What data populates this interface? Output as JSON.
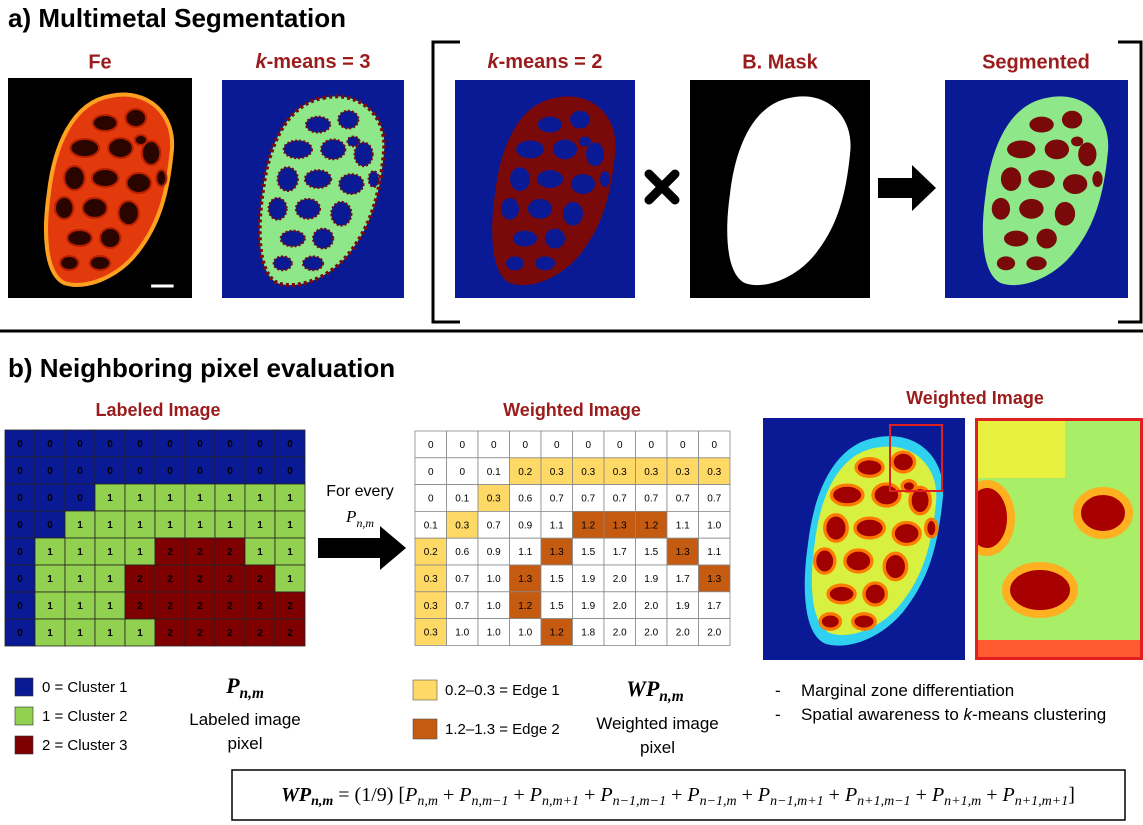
{
  "section_a": {
    "title": "a) Multimetal Segmentation",
    "panels": [
      "Fe",
      [
        {
          "text": "k",
          "italic": true
        },
        {
          "text": "-means = 3"
        }
      ],
      [
        {
          "text": "k",
          "italic": true
        },
        {
          "text": "-means = 2"
        }
      ],
      "B. Mask",
      "Segmented"
    ]
  },
  "section_b": {
    "title": "b) Neighboring pixel evaluation",
    "labeled": {
      "title": "Labeled Image",
      "rows": [
        [
          0,
          0,
          0,
          0,
          0,
          0,
          0,
          0,
          0,
          0
        ],
        [
          0,
          0,
          0,
          0,
          0,
          0,
          0,
          0,
          0,
          0
        ],
        [
          0,
          0,
          0,
          1,
          1,
          1,
          1,
          1,
          1,
          1
        ],
        [
          0,
          0,
          1,
          1,
          1,
          1,
          1,
          1,
          1,
          1
        ],
        [
          0,
          1,
          1,
          1,
          1,
          2,
          2,
          2,
          1,
          1
        ],
        [
          0,
          1,
          1,
          1,
          2,
          2,
          2,
          2,
          2,
          1
        ],
        [
          0,
          1,
          1,
          1,
          2,
          2,
          2,
          2,
          2,
          2
        ],
        [
          0,
          1,
          1,
          1,
          1,
          2,
          2,
          2,
          2,
          2
        ]
      ],
      "legend": [
        {
          "value": 0,
          "label": "0 = Cluster 1",
          "color": "#0a1a94"
        },
        {
          "value": 1,
          "label": "1 = Cluster 2",
          "color": "#92d050"
        },
        {
          "value": 2,
          "label": "2 = Cluster 3",
          "color": "#7f0000"
        }
      ],
      "symbol": [
        {
          "text": "P"
        },
        {
          "text": "n,m",
          "sub": true
        }
      ],
      "caption": "Labeled image pixel"
    },
    "transition": {
      "text": "For every",
      "symbol": [
        {
          "text": "P",
          "italic": true
        },
        {
          "text": "n,m",
          "sub": true,
          "italic": true
        }
      ]
    },
    "weighted": {
      "title": "Weighted Image",
      "rows": [
        [
          "0",
          "0",
          "0",
          "0",
          "0",
          "0",
          "0",
          "0",
          "0",
          "0"
        ],
        [
          "0",
          "0",
          "0.1",
          "0.2",
          "0.3",
          "0.3",
          "0.3",
          "0.3",
          "0.3",
          "0.3"
        ],
        [
          "0",
          "0.1",
          "0.3",
          "0.6",
          "0.7",
          "0.7",
          "0.7",
          "0.7",
          "0.7",
          "0.7"
        ],
        [
          "0.1",
          "0.3",
          "0.7",
          "0.9",
          "1.1",
          "1.2",
          "1.3",
          "1.2",
          "1.1",
          "1.0"
        ],
        [
          "0.2",
          "0.6",
          "0.9",
          "1.1",
          "1.3",
          "1.5",
          "1.7",
          "1.5",
          "1.3",
          "1.1"
        ],
        [
          "0.3",
          "0.7",
          "1.0",
          "1.3",
          "1.5",
          "1.9",
          "2.0",
          "1.9",
          "1.7",
          "1.3"
        ],
        [
          "0.3",
          "0.7",
          "1.0",
          "1.2",
          "1.5",
          "1.9",
          "2.0",
          "2.0",
          "1.9",
          "1.7"
        ],
        [
          "0.3",
          "1.0",
          "1.0",
          "1.0",
          "1.2",
          "1.8",
          "2.0",
          "2.0",
          "2.0",
          "2.0"
        ]
      ],
      "legend": [
        {
          "range": [
            0.2,
            0.3
          ],
          "label": "0.2–0.3 = Edge 1",
          "color": "#ffd966"
        },
        {
          "range": [
            1.2,
            1.3
          ],
          "label": "1.2–1.3 = Edge 2",
          "color": "#c55a11"
        }
      ],
      "symbol": [
        {
          "text": "WP"
        },
        {
          "text": "n,m",
          "sub": true
        }
      ],
      "caption": "Weighted image pixel"
    },
    "image": {
      "title": "Weighted Image"
    },
    "bullets": {
      "marker": "-",
      "items": [
        "Marginal zone differentiation",
        [
          {
            "text": "Spatial awareness to "
          },
          {
            "text": "k",
            "italic": true
          },
          {
            "text": "-means clustering"
          }
        ]
      ]
    },
    "formula": [
      {
        "text": "WP",
        "bold": true,
        "italic": true
      },
      {
        "text": "n,m",
        "sub": true,
        "bold": true,
        "italic": true
      },
      {
        "text": " = (1/9) ["
      },
      {
        "text": "P",
        "italic": true
      },
      {
        "text": "n,m",
        "sub": true,
        "italic": true
      },
      {
        "text": " + "
      },
      {
        "text": "P",
        "italic": true
      },
      {
        "text": "n,m−1",
        "sub": true,
        "italic": true
      },
      {
        "text": " + "
      },
      {
        "text": "P",
        "italic": true
      },
      {
        "text": "n,m+1",
        "sub": true,
        "italic": true
      },
      {
        "text": " + "
      },
      {
        "text": "P",
        "italic": true
      },
      {
        "text": "n−1,m−1",
        "sub": true,
        "italic": true
      },
      {
        "text": " + "
      },
      {
        "text": "P",
        "italic": true
      },
      {
        "text": "n−1,m",
        "sub": true,
        "italic": true
      },
      {
        "text": " + "
      },
      {
        "text": "P",
        "italic": true
      },
      {
        "text": "n−1,m+1",
        "sub": true,
        "italic": true
      },
      {
        "text": " + "
      },
      {
        "text": "P",
        "italic": true
      },
      {
        "text": "n+1,m−1",
        "sub": true,
        "italic": true
      },
      {
        "text": " + "
      },
      {
        "text": "P",
        "italic": true
      },
      {
        "text": "n+1,m",
        "sub": true,
        "italic": true
      },
      {
        "text": " + "
      },
      {
        "text": "P",
        "italic": true
      },
      {
        "text": "n+1,m+1",
        "sub": true,
        "italic": true
      },
      {
        "text": "]"
      }
    ]
  }
}
